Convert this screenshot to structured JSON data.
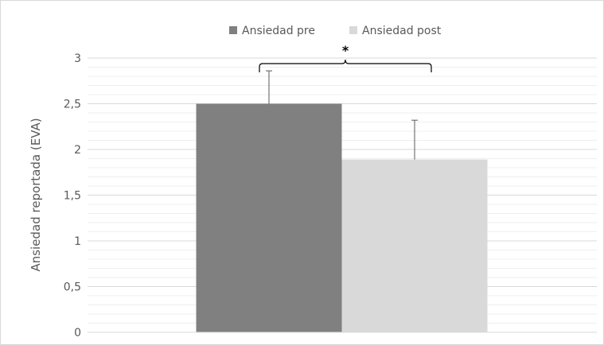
{
  "chart_data": {
    "type": "bar",
    "categories": [
      ""
    ],
    "series": [
      {
        "name": "Ansiedad pre",
        "values": [
          2.5
        ],
        "error": [
          0.36
        ],
        "color": "#808080"
      },
      {
        "name": "Ansiedad post",
        "values": [
          1.89
        ],
        "error": [
          0.43
        ],
        "color": "#d9d9d9"
      }
    ],
    "title": "",
    "xlabel": "",
    "ylabel": "Ansiedad reportada (EVA)",
    "ylim": [
      0,
      3
    ],
    "yticks": [
      "0",
      "0,5",
      "1",
      "1,5",
      "2",
      "2,5",
      "3"
    ],
    "grid": true,
    "legend_position": "top",
    "annotation": "*"
  }
}
